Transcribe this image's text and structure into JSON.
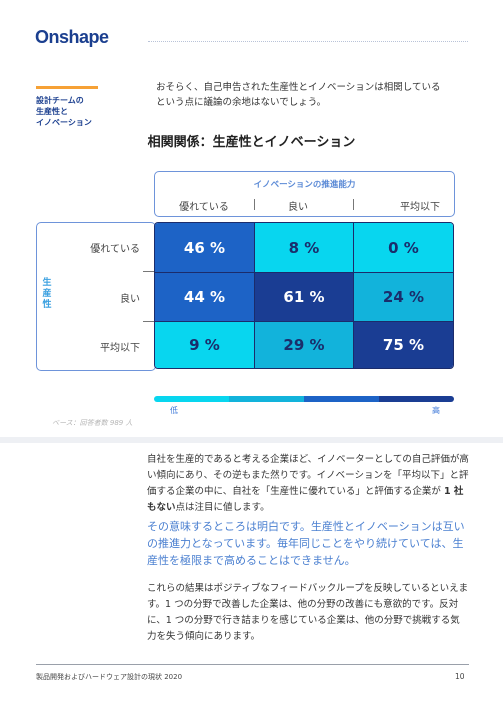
{
  "header": {
    "logo_text": "Onshape"
  },
  "sidebar": {
    "section_label": "設計チームの\n生産性と\nイノベーション"
  },
  "intro": "おそらく、自己申告された生産性とイノベーションは相関している\nという点に議論の余地はないでしょう。",
  "matrix": {
    "title": "相関関係：生産性とイノベーション",
    "column_axis_label": "イノベーションの推進能力",
    "row_axis_label": "生産性",
    "columns": [
      "優れている",
      "良い",
      "平均以下"
    ],
    "rows": [
      "優れている",
      "良い",
      "平均以下"
    ],
    "values": [
      [
        "46 %",
        "8 %",
        "0 %"
      ],
      [
        "44 %",
        "61 %",
        "24 %"
      ],
      [
        "9 %",
        "29 %",
        "75 %"
      ]
    ],
    "cell_fill_levels": [
      [
        3,
        1,
        1
      ],
      [
        3,
        4,
        2
      ],
      [
        1,
        2,
        4
      ]
    ],
    "colors": {
      "level1": "#08d6ef",
      "level2": "#12b3db",
      "level3": "#1d63c6",
      "level4": "#1a3d93"
    },
    "legend_low": "低",
    "legend_high": "高",
    "base_note": "ベース：回答者数 989 人"
  },
  "body": {
    "paragraph1_a": "自社を生産的であると考える企業ほど、イノベーターとしての自己評価が高い傾向にあり、その逆もまた然りです。イノベーションを「平均以下」と評価する企業の中に、自社を「生産性に優れている」と評価する企業が ",
    "paragraph1_bold": "1 社もない",
    "paragraph1_b": "点は注目に値します。",
    "quote": "その意味するところは明白です。生産性とイノベーションは互いの推進力となっています。毎年同じことをやり続けていては、生産性を極限まで高めることはできません。",
    "paragraph2": "これらの結果はポジティブなフィードバックループを反映しているといえます。1 つの分野で改善した企業は、他の分野の改善にも意欲的です。反対に、1 つの分野で行き詰まりを感じている企業は、他の分野で挑戦する気力を失う傾向にあります。"
  },
  "footer": {
    "report_title": "製品開発およびハードウェア設計の現状 2020",
    "page_number": "10"
  }
}
